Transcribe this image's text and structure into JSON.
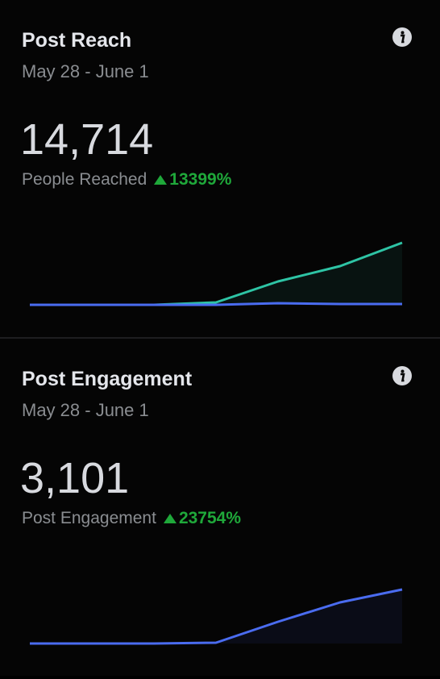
{
  "panels": [
    {
      "title": "Post Reach",
      "date_range": "May 28 - June 1",
      "metric": "14,714",
      "metric_label": "People Reached",
      "change": "13399%",
      "chart": {
        "type": "line",
        "series": [
          {
            "color": "#2ec4a5",
            "values": [
              0,
              0,
              0,
              3,
              29,
              48,
              77
            ]
          },
          {
            "color": "#4a6cf0",
            "values": [
              0,
              0,
              0,
              0,
              2,
              1,
              1
            ]
          }
        ]
      }
    },
    {
      "title": "Post Engagement",
      "date_range": "May 28 - June 1",
      "metric": "3,101",
      "metric_label": "Post Engagement",
      "change": "23754%",
      "chart": {
        "type": "line",
        "series": [
          {
            "color": "#4a6cf0",
            "values": [
              0,
              0,
              0,
              1,
              27,
              51,
              67
            ]
          }
        ]
      }
    }
  ]
}
